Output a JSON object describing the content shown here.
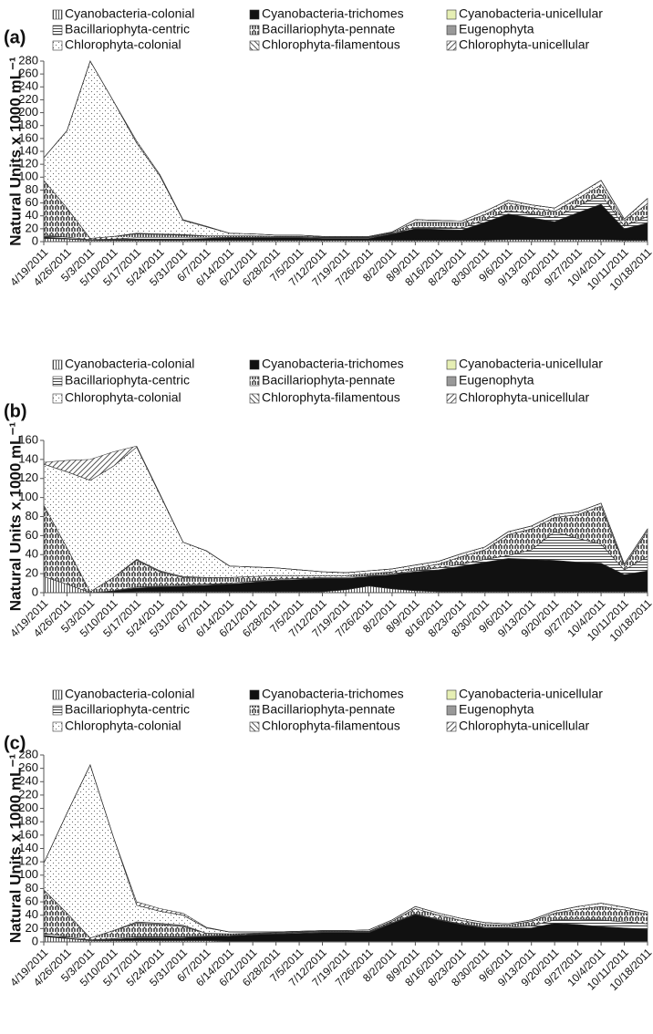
{
  "chart_data": [
    {
      "type": "area",
      "panel_label": "(a)",
      "ylabel": "Natural Units x 1000 mL⁻¹",
      "categories": [
        "4/19/2011",
        "4/26/2011",
        "5/3/2011",
        "5/10/2011",
        "5/17/2011",
        "5/24/2011",
        "5/31/2011",
        "6/7/2011",
        "6/14/2011",
        "6/21/2011",
        "6/28/2011",
        "7/5/2011",
        "7/12/2011",
        "7/19/2011",
        "7/26/2011",
        "8/2/2011",
        "8/9/2011",
        "8/16/2011",
        "8/23/2011",
        "8/30/2011",
        "9/6/2011",
        "9/13/2011",
        "9/20/2011",
        "9/27/2011",
        "10/4/2011",
        "10/11/2011",
        "10/18/2011"
      ],
      "ylim": [
        0,
        280
      ],
      "yticks": [
        0,
        20,
        40,
        60,
        80,
        100,
        120,
        140,
        160,
        180,
        200,
        220,
        240,
        260,
        280
      ],
      "series": [
        {
          "name": "Cyanobacteria-colonial",
          "color": "#555555",
          "pattern": "vlines",
          "values": [
            5,
            4,
            2,
            2,
            2,
            2,
            2,
            2,
            2,
            2,
            2,
            2,
            2,
            2,
            2,
            2,
            2,
            2,
            2,
            2,
            3,
            3,
            3,
            3,
            3,
            2,
            2
          ]
        },
        {
          "name": "Cyanobacteria-trichomes",
          "color": "#111111",
          "pattern": "solid",
          "values": [
            2,
            1,
            0,
            1,
            2,
            2,
            2,
            3,
            4,
            4,
            4,
            4,
            3,
            3,
            3,
            10,
            18,
            17,
            16,
            28,
            40,
            34,
            28,
            42,
            55,
            18,
            27
          ]
        },
        {
          "name": "Cyanobacteria-unicellular",
          "color": "#e6efb4",
          "pattern": "solid",
          "values": [
            0,
            0,
            0,
            0,
            0,
            0,
            0,
            0,
            0,
            0,
            0,
            0,
            0,
            0,
            0,
            0,
            0,
            0,
            0,
            0,
            0,
            0,
            0,
            0,
            0,
            0,
            0
          ]
        },
        {
          "name": "Bacillariophyta-centric",
          "color": "#444444",
          "pattern": "hlines",
          "values": [
            3,
            2,
            1,
            1,
            2,
            2,
            2,
            1,
            1,
            1,
            1,
            1,
            1,
            1,
            1,
            1,
            2,
            3,
            3,
            4,
            5,
            6,
            6,
            10,
            15,
            4,
            10
          ]
        },
        {
          "name": "Bacillariophyta-pennate",
          "color": "#333333",
          "pattern": "dots-dense",
          "values": [
            85,
            45,
            2,
            4,
            6,
            5,
            4,
            3,
            2,
            2,
            1,
            1,
            1,
            1,
            1,
            1,
            8,
            8,
            8,
            8,
            12,
            10,
            10,
            12,
            15,
            8,
            20
          ]
        },
        {
          "name": "Eugenophyta",
          "color": "#999999",
          "pattern": "solid",
          "values": [
            0,
            0,
            0,
            0,
            1,
            1,
            1,
            0,
            0,
            0,
            0,
            0,
            0,
            0,
            0,
            0,
            0,
            0,
            0,
            0,
            0,
            0,
            0,
            0,
            0,
            0,
            0
          ]
        },
        {
          "name": "Chlorophyta-colonial",
          "color": "#666666",
          "pattern": "dots-sparse",
          "values": [
            35,
            120,
            275,
            210,
            140,
            90,
            22,
            14,
            4,
            3,
            2,
            2,
            1,
            1,
            1,
            1,
            4,
            3,
            3,
            5,
            4,
            4,
            5,
            6,
            7,
            3,
            8
          ]
        },
        {
          "name": "Chlorophyta-filamentous",
          "color": "#555555",
          "pattern": "backdiag",
          "values": [
            0,
            0,
            0,
            0,
            0,
            0,
            0,
            0,
            0,
            0,
            0,
            0,
            0,
            0,
            0,
            0,
            0,
            0,
            0,
            0,
            0,
            0,
            0,
            0,
            0,
            0,
            0
          ]
        },
        {
          "name": "Chlorophyta-unicellular",
          "color": "#555555",
          "pattern": "diag",
          "values": [
            0,
            0,
            0,
            0,
            3,
            2,
            1,
            1,
            0,
            0,
            0,
            0,
            0,
            0,
            0,
            0,
            0,
            0,
            0,
            0,
            0,
            0,
            0,
            0,
            0,
            0,
            0
          ]
        }
      ]
    },
    {
      "type": "area",
      "panel_label": "(b)",
      "ylabel": "Natural Units x 1000 mL⁻¹",
      "categories": [
        "4/19/2011",
        "4/26/2011",
        "5/3/2011",
        "5/10/2011",
        "5/17/2011",
        "5/24/2011",
        "5/31/2011",
        "6/7/2011",
        "6/14/2011",
        "6/21/2011",
        "6/28/2011",
        "7/5/2011",
        "7/12/2011",
        "7/19/2011",
        "7/26/2011",
        "8/2/2011",
        "8/9/2011",
        "8/16/2011",
        "8/23/2011",
        "8/30/2011",
        "9/6/2011",
        "9/13/2011",
        "9/20/2011",
        "9/27/2011",
        "10/4/2011",
        "10/11/2011",
        "10/18/2011"
      ],
      "ylim": [
        0,
        160
      ],
      "yticks": [
        0,
        20,
        40,
        60,
        80,
        100,
        120,
        140,
        160
      ],
      "series": [
        {
          "name": "Cyanobacteria-colonial",
          "color": "#555555",
          "pattern": "vlines",
          "values": [
            17,
            9,
            0,
            0,
            1,
            1,
            1,
            1,
            1,
            1,
            1,
            1,
            1,
            3,
            7,
            4,
            2,
            1,
            1,
            1,
            1,
            1,
            1,
            1,
            1,
            1,
            1
          ]
        },
        {
          "name": "Cyanobacteria-trichomes",
          "color": "#111111",
          "pattern": "solid",
          "values": [
            0,
            0,
            0,
            2,
            4,
            5,
            6,
            7,
            8,
            10,
            12,
            13,
            14,
            12,
            10,
            15,
            20,
            23,
            27,
            31,
            35,
            34,
            33,
            31,
            30,
            18,
            22
          ]
        },
        {
          "name": "Cyanobacteria-unicellular",
          "color": "#e6efb4",
          "pattern": "solid",
          "values": [
            0,
            0,
            0,
            0,
            0,
            0,
            0,
            0,
            0,
            0,
            0,
            0,
            0,
            0,
            0,
            0,
            0,
            0,
            0,
            0,
            0,
            0,
            0,
            0,
            0,
            0,
            0
          ]
        },
        {
          "name": "Bacillariophyta-centric",
          "color": "#444444",
          "pattern": "hlines",
          "values": [
            0,
            0,
            0,
            0,
            1,
            1,
            1,
            1,
            1,
            1,
            1,
            1,
            1,
            1,
            1,
            1,
            1,
            2,
            2,
            3,
            3,
            10,
            30,
            25,
            20,
            5,
            15
          ]
        },
        {
          "name": "Bacillariophyta-pennate",
          "color": "#333333",
          "pattern": "dots-dense",
          "values": [
            75,
            38,
            1,
            14,
            28,
            15,
            8,
            7,
            6,
            5,
            4,
            3,
            2,
            2,
            2,
            2,
            3,
            4,
            8,
            10,
            22,
            22,
            15,
            25,
            40,
            4,
            27
          ]
        },
        {
          "name": "Eugenophyta",
          "color": "#999999",
          "pattern": "solid",
          "values": [
            0,
            0,
            0,
            0,
            1,
            1,
            1,
            0,
            0,
            0,
            0,
            0,
            0,
            0,
            0,
            0,
            0,
            0,
            0,
            0,
            0,
            0,
            0,
            0,
            0,
            0,
            0
          ]
        },
        {
          "name": "Chlorophyta-colonial",
          "color": "#666666",
          "pattern": "dots-sparse",
          "values": [
            43,
            80,
            117,
            117,
            118,
            80,
            36,
            28,
            12,
            10,
            8,
            6,
            4,
            3,
            3,
            3,
            3,
            3,
            3,
            3,
            3,
            3,
            3,
            3,
            3,
            2,
            2
          ]
        },
        {
          "name": "Chlorophyta-filamentous",
          "color": "#555555",
          "pattern": "backdiag",
          "values": [
            0,
            0,
            0,
            0,
            0,
            0,
            0,
            0,
            0,
            0,
            0,
            0,
            0,
            0,
            0,
            0,
            0,
            0,
            0,
            0,
            0,
            0,
            0,
            0,
            0,
            0,
            0
          ]
        },
        {
          "name": "Chlorophyta-unicellular",
          "color": "#555555",
          "pattern": "diag",
          "values": [
            2,
            12,
            22,
            15,
            1,
            1,
            0,
            0,
            0,
            0,
            0,
            0,
            0,
            0,
            0,
            0,
            0,
            0,
            0,
            0,
            0,
            0,
            0,
            0,
            0,
            0,
            0
          ]
        }
      ]
    },
    {
      "type": "area",
      "panel_label": "(c)",
      "ylabel": "Natural Units x 1000 mL⁻¹",
      "categories": [
        "4/19/2011",
        "4/26/2011",
        "5/3/2011",
        "5/10/2011",
        "5/17/2011",
        "5/24/2011",
        "5/31/2011",
        "6/7/2011",
        "6/14/2011",
        "6/21/2011",
        "6/28/2011",
        "7/5/2011",
        "7/12/2011",
        "7/19/2011",
        "7/26/2011",
        "8/2/2011",
        "8/9/2011",
        "8/16/2011",
        "8/23/2011",
        "8/30/2011",
        "9/6/2011",
        "9/13/2011",
        "9/20/2011",
        "9/27/2011",
        "10/4/2011",
        "10/11/2011",
        "10/18/2011"
      ],
      "ylim": [
        0,
        280
      ],
      "yticks": [
        0,
        20,
        40,
        60,
        80,
        100,
        120,
        140,
        160,
        180,
        200,
        220,
        240,
        260,
        280
      ],
      "series": [
        {
          "name": "Cyanobacteria-colonial",
          "color": "#555555",
          "pattern": "vlines",
          "values": [
            8,
            5,
            2,
            2,
            2,
            2,
            2,
            2,
            1,
            1,
            1,
            1,
            1,
            1,
            1,
            1,
            1,
            1,
            1,
            1,
            1,
            1,
            1,
            1,
            1,
            1,
            1
          ]
        },
        {
          "name": "Cyanobacteria-trichomes",
          "color": "#111111",
          "pattern": "solid",
          "values": [
            2,
            1,
            0,
            2,
            4,
            4,
            4,
            6,
            8,
            10,
            11,
            12,
            13,
            13,
            13,
            27,
            40,
            32,
            25,
            20,
            20,
            20,
            27,
            25,
            22,
            20,
            18
          ]
        },
        {
          "name": "Cyanobacteria-unicellular",
          "color": "#e6efb4",
          "pattern": "solid",
          "values": [
            0,
            0,
            0,
            0,
            0,
            0,
            0,
            0,
            0,
            0,
            0,
            0,
            0,
            0,
            0,
            0,
            0,
            0,
            0,
            0,
            0,
            0,
            0,
            0,
            0,
            0,
            0
          ]
        },
        {
          "name": "Bacillariophyta-centric",
          "color": "#444444",
          "pattern": "hlines",
          "values": [
            3,
            2,
            1,
            1,
            2,
            2,
            2,
            1,
            1,
            1,
            1,
            1,
            1,
            1,
            1,
            1,
            1,
            1,
            1,
            1,
            1,
            3,
            5,
            8,
            10,
            9,
            8
          ]
        },
        {
          "name": "Bacillariophyta-pennate",
          "color": "#333333",
          "pattern": "dots-dense",
          "values": [
            65,
            35,
            3,
            12,
            20,
            18,
            15,
            4,
            2,
            1,
            1,
            1,
            1,
            1,
            1,
            2,
            8,
            6,
            5,
            4,
            3,
            7,
            10,
            15,
            20,
            18,
            15
          ]
        },
        {
          "name": "Eugenophyta",
          "color": "#999999",
          "pattern": "solid",
          "values": [
            0,
            0,
            0,
            0,
            2,
            2,
            2,
            0,
            0,
            0,
            0,
            0,
            0,
            0,
            0,
            0,
            0,
            0,
            0,
            0,
            0,
            0,
            0,
            0,
            0,
            0,
            0
          ]
        },
        {
          "name": "Chlorophyta-colonial",
          "color": "#666666",
          "pattern": "dots-sparse",
          "values": [
            40,
            150,
            259,
            140,
            25,
            18,
            15,
            8,
            3,
            2,
            1,
            1,
            1,
            1,
            2,
            2,
            3,
            3,
            3,
            3,
            2,
            2,
            3,
            4,
            5,
            4,
            3
          ]
        },
        {
          "name": "Chlorophyta-filamentous",
          "color": "#555555",
          "pattern": "backdiag",
          "values": [
            0,
            0,
            0,
            0,
            0,
            0,
            0,
            0,
            0,
            0,
            0,
            0,
            0,
            0,
            0,
            0,
            0,
            0,
            0,
            0,
            0,
            0,
            0,
            0,
            0,
            0,
            0
          ]
        },
        {
          "name": "Chlorophyta-unicellular",
          "color": "#555555",
          "pattern": "diag",
          "values": [
            0,
            0,
            0,
            0,
            5,
            4,
            3,
            1,
            0,
            0,
            0,
            0,
            0,
            0,
            0,
            0,
            0,
            0,
            0,
            0,
            0,
            0,
            0,
            0,
            0,
            0,
            0
          ]
        }
      ]
    }
  ]
}
